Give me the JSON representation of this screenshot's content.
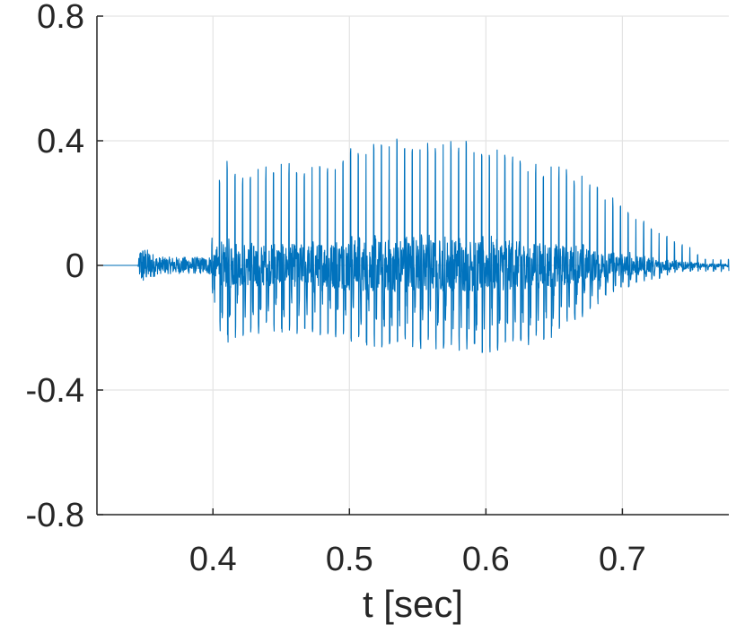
{
  "chart_data": {
    "type": "line",
    "title": "",
    "xlabel": "t [sec]",
    "ylabel": "",
    "xlim": [
      0.315,
      0.778
    ],
    "ylim": [
      -0.8,
      0.8
    ],
    "xticks": [
      0.4,
      0.5,
      0.6,
      0.7
    ],
    "xtick_labels": [
      "0.4",
      "0.5",
      "0.6",
      "0.7"
    ],
    "yticks": [
      -0.8,
      -0.4,
      0,
      0.4,
      0.8
    ],
    "ytick_labels": [
      "-0.8",
      "-0.4",
      "0",
      "0.4",
      "0.8"
    ],
    "grid": true,
    "legend": "none",
    "series": [
      {
        "color": "#0072BD",
        "description_points": {
          "x": [
            0.315,
            0.345,
            0.347,
            0.36,
            0.38,
            0.395,
            0.399,
            0.4,
            0.403,
            0.41,
            0.412,
            0.42,
            0.43,
            0.44,
            0.45,
            0.46,
            0.47,
            0.48,
            0.49,
            0.5,
            0.51,
            0.52,
            0.53,
            0.54,
            0.55,
            0.56,
            0.57,
            0.58,
            0.59,
            0.6,
            0.61,
            0.62,
            0.63,
            0.64,
            0.65,
            0.66,
            0.67,
            0.68,
            0.69,
            0.7,
            0.71,
            0.72,
            0.73,
            0.74,
            0.745,
            0.75,
            0.76,
            0.778
          ],
          "upper": [
            0.0,
            0.0,
            0.07,
            0.03,
            0.03,
            0.04,
            0.05,
            0.2,
            0.3,
            0.33,
            0.36,
            0.3,
            0.31,
            0.32,
            0.33,
            0.33,
            0.33,
            0.32,
            0.36,
            0.41,
            0.41,
            0.41,
            0.41,
            0.42,
            0.42,
            0.42,
            0.41,
            0.41,
            0.4,
            0.39,
            0.38,
            0.36,
            0.34,
            0.33,
            0.32,
            0.31,
            0.29,
            0.26,
            0.23,
            0.2,
            0.16,
            0.13,
            0.11,
            0.07,
            0.07,
            0.06,
            0.02,
            0.02
          ],
          "lower": [
            0.0,
            0.0,
            -0.08,
            -0.03,
            -0.03,
            -0.02,
            -0.02,
            -0.13,
            -0.2,
            -0.25,
            -0.25,
            -0.23,
            -0.22,
            -0.22,
            -0.22,
            -0.22,
            -0.22,
            -0.23,
            -0.24,
            -0.25,
            -0.26,
            -0.26,
            -0.27,
            -0.27,
            -0.27,
            -0.27,
            -0.27,
            -0.28,
            -0.28,
            -0.28,
            -0.28,
            -0.27,
            -0.26,
            -0.25,
            -0.23,
            -0.2,
            -0.17,
            -0.13,
            -0.1,
            -0.08,
            -0.06,
            -0.05,
            -0.04,
            -0.02,
            -0.02,
            -0.02,
            -0.02,
            -0.02
          ]
        }
      }
    ]
  }
}
